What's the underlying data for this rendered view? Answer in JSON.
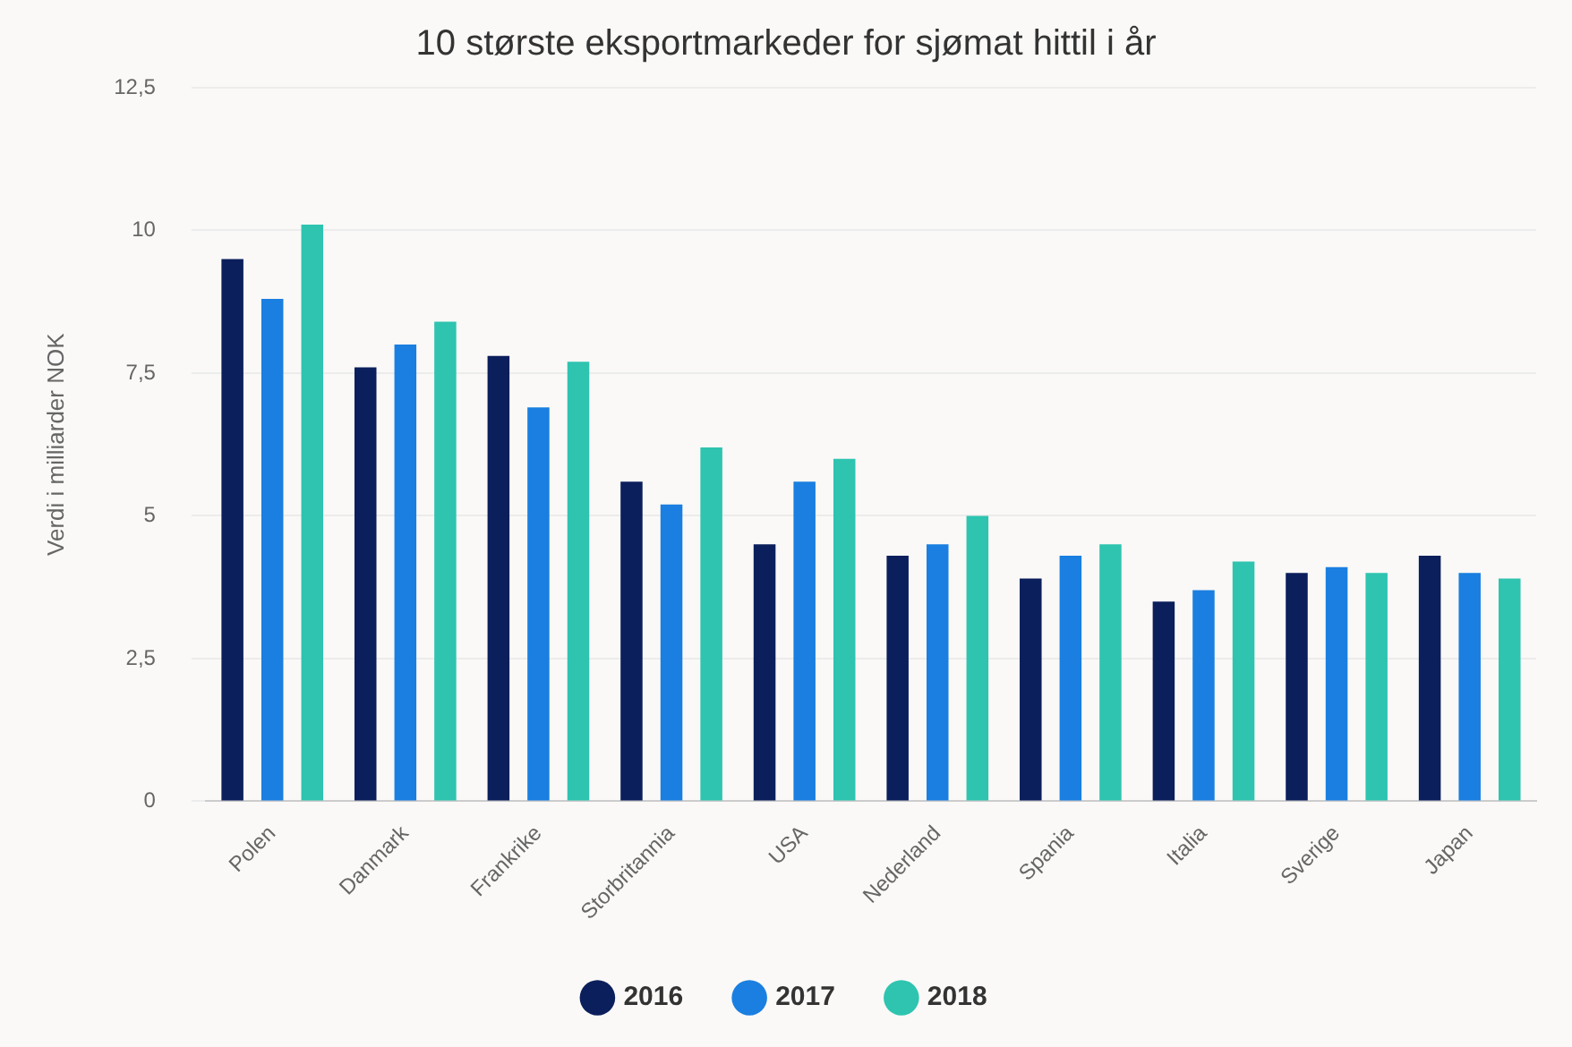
{
  "chart_data": {
    "type": "bar",
    "title": "10 største eksportmarkeder for sjømat hittil i år",
    "ylabel": "Verdi i milliarder NOK",
    "categories": [
      "Polen",
      "Danmark",
      "Frankrike",
      "Storbritannia",
      "USA",
      "Nederland",
      "Spania",
      "Italia",
      "Sverige",
      "Japan"
    ],
    "series": [
      {
        "name": "2016",
        "color": "#0b1f5c",
        "values": [
          9.5,
          7.6,
          7.8,
          5.6,
          4.5,
          4.3,
          3.9,
          3.5,
          4.0,
          4.3
        ]
      },
      {
        "name": "2017",
        "color": "#1a7fe0",
        "values": [
          8.8,
          8.0,
          6.9,
          5.2,
          5.6,
          4.5,
          4.3,
          3.7,
          4.1,
          4.0
        ]
      },
      {
        "name": "2018",
        "color": "#2ec4b0",
        "values": [
          10.1,
          8.4,
          7.7,
          6.2,
          6.0,
          5.0,
          4.5,
          4.2,
          4.0,
          3.9
        ]
      }
    ],
    "ylim": [
      0,
      12.5
    ],
    "yticks": [
      0,
      {
        "value": 2.5,
        "label": "2,5"
      },
      5,
      {
        "value": 7.5,
        "label": "7,5"
      },
      10,
      {
        "value": 12.5,
        "label": "12,5"
      }
    ],
    "grid": "y",
    "legend": "bottom"
  }
}
